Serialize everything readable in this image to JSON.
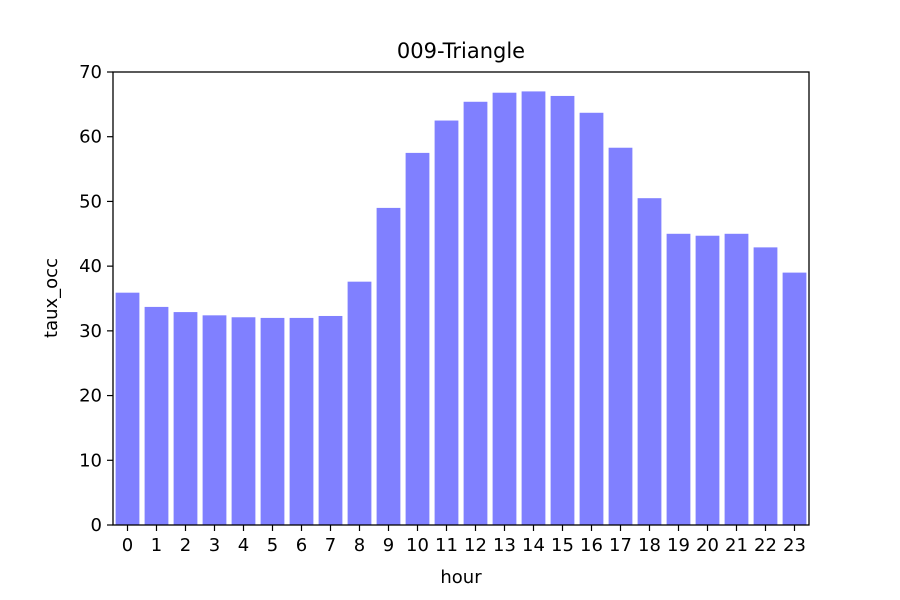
{
  "chart_data": {
    "type": "bar",
    "title": "009-Triangle",
    "xlabel": "hour",
    "ylabel": "taux_occ",
    "categories": [
      "0",
      "1",
      "2",
      "3",
      "4",
      "5",
      "6",
      "7",
      "8",
      "9",
      "10",
      "11",
      "12",
      "13",
      "14",
      "15",
      "16",
      "17",
      "18",
      "19",
      "20",
      "21",
      "22",
      "23"
    ],
    "values": [
      35.9,
      33.7,
      32.9,
      32.4,
      32.1,
      32.0,
      32.0,
      32.3,
      37.6,
      49.0,
      57.5,
      62.5,
      65.4,
      66.8,
      67.0,
      66.3,
      63.7,
      58.3,
      50.5,
      45.0,
      44.7,
      45.0,
      42.9,
      39.0
    ],
    "ylim": [
      0,
      70
    ],
    "yticks": [
      0,
      10,
      20,
      30,
      40,
      50,
      60,
      70
    ],
    "grid": false,
    "bar_color": "#8080ff"
  }
}
